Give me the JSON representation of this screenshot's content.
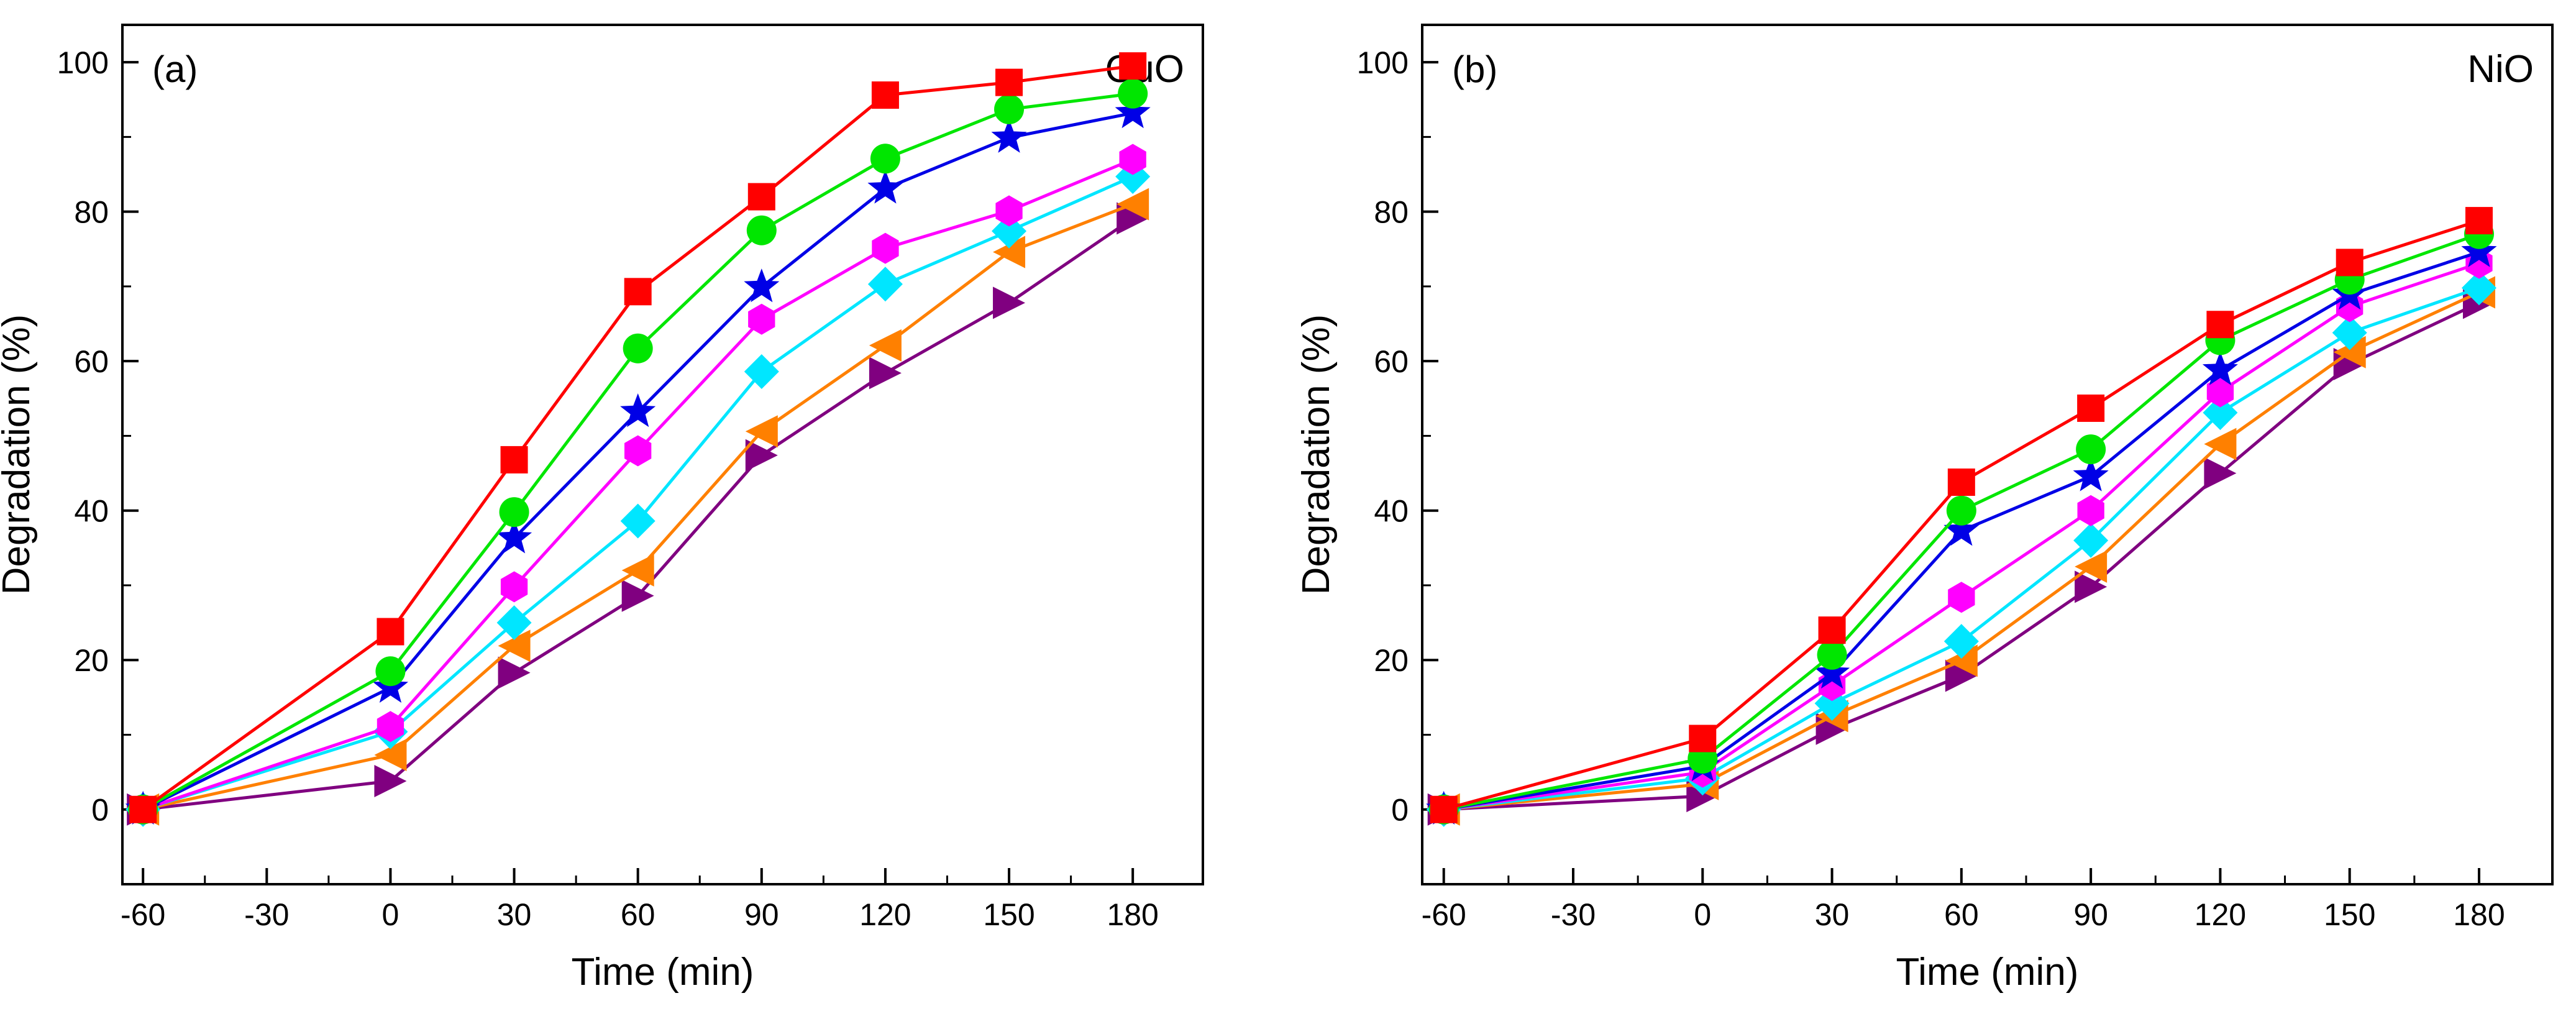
{
  "chart_data": [
    {
      "type": "line",
      "panel_label": "(a)",
      "material": "CuO",
      "xlabel": "Time (min)",
      "ylabel": "Degradation (%)",
      "xlim": [
        -65,
        197
      ],
      "ylim": [
        -10,
        105
      ],
      "xticks": [
        -60,
        -30,
        0,
        30,
        60,
        90,
        120,
        150,
        180
      ],
      "yticks": [
        0,
        20,
        40,
        60,
        80,
        100
      ],
      "x": [
        -60,
        0,
        30,
        60,
        90,
        120,
        150,
        180
      ],
      "series": [
        {
          "marker": "square",
          "color": "#ff0000",
          "values": [
            0,
            23.8,
            46.8,
            69.3,
            82.0,
            95.6,
            97.3,
            99.5
          ]
        },
        {
          "marker": "circle",
          "color": "#00e600",
          "values": [
            0,
            18.5,
            39.8,
            61.7,
            77.5,
            87.1,
            93.7,
            95.8
          ]
        },
        {
          "marker": "star",
          "color": "#0000e6",
          "values": [
            0,
            16.3,
            36.3,
            53.2,
            69.9,
            83.1,
            89.9,
            93.2
          ]
        },
        {
          "marker": "hexagon",
          "color": "#ff00ff",
          "values": [
            0,
            11.1,
            29.8,
            48.0,
            65.6,
            75.1,
            80.1,
            87.0
          ]
        },
        {
          "marker": "diamond",
          "color": "#00e6ff",
          "values": [
            0,
            10.4,
            25.0,
            38.6,
            58.6,
            70.3,
            77.4,
            84.7
          ]
        },
        {
          "marker": "triangle-left",
          "color": "#ff8000",
          "values": [
            0,
            7.3,
            21.9,
            32.0,
            50.6,
            62.1,
            74.6,
            81.0
          ]
        },
        {
          "marker": "triangle-right",
          "color": "#800080",
          "values": [
            0,
            3.8,
            18.3,
            28.6,
            47.4,
            58.4,
            67.8,
            79.1
          ]
        }
      ]
    },
    {
      "type": "line",
      "panel_label": "(b)",
      "material": "NiO",
      "xlabel": "Time (min)",
      "ylabel": "Degradation (%)",
      "xlim": [
        -65,
        197
      ],
      "ylim": [
        -10,
        105
      ],
      "xticks": [
        -60,
        -30,
        0,
        30,
        60,
        90,
        120,
        150,
        180
      ],
      "yticks": [
        0,
        20,
        40,
        60,
        80,
        100
      ],
      "x": [
        -60,
        0,
        30,
        60,
        90,
        120,
        150,
        180
      ],
      "series": [
        {
          "marker": "square",
          "color": "#ff0000",
          "values": [
            0,
            9.5,
            24.0,
            43.8,
            53.7,
            64.9,
            73.2,
            78.8
          ]
        },
        {
          "marker": "circle",
          "color": "#00e600",
          "values": [
            0,
            6.8,
            20.7,
            40.0,
            48.2,
            62.8,
            70.9,
            77.0
          ]
        },
        {
          "marker": "star",
          "color": "#0000e6",
          "values": [
            0,
            5.8,
            18.2,
            37.3,
            44.6,
            58.8,
            68.9,
            74.6
          ]
        },
        {
          "marker": "hexagon",
          "color": "#ff00ff",
          "values": [
            0,
            5.0,
            16.6,
            28.4,
            40.0,
            55.9,
            67.3,
            73.1
          ]
        },
        {
          "marker": "diamond",
          "color": "#00e6ff",
          "values": [
            0,
            4.2,
            14.2,
            22.5,
            36.0,
            53.1,
            63.8,
            69.8
          ]
        },
        {
          "marker": "triangle-left",
          "color": "#ff8000",
          "values": [
            0,
            3.4,
            12.5,
            19.9,
            32.5,
            48.9,
            61.2,
            69.2
          ]
        },
        {
          "marker": "triangle-right",
          "color": "#800080",
          "values": [
            0,
            1.8,
            10.8,
            17.9,
            29.8,
            45.0,
            59.6,
            67.8
          ]
        }
      ]
    }
  ]
}
